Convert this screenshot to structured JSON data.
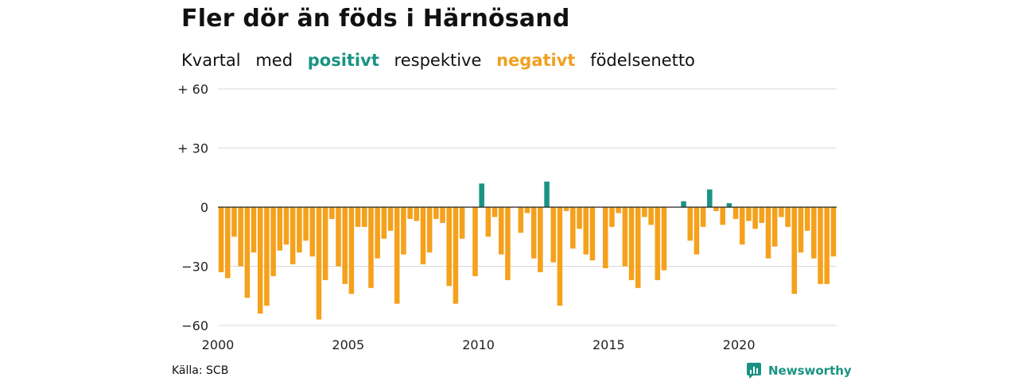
{
  "title": "Fler dör än föds i Härnösand",
  "subtitle": {
    "w1": "Kvartal",
    "w2": "med",
    "positive_word": "positivt",
    "w3": "respektive",
    "negative_word": "negativt",
    "w4": "födelsenetto"
  },
  "source": "Källa: SCB",
  "brand": "Newsworthy",
  "colors": {
    "positive": "#1a9383",
    "negative": "#f5a11c",
    "grid": "#d9d9d9",
    "zero": "#222222"
  },
  "chart_data": {
    "type": "bar",
    "title": "Fler dör än föds i Härnösand",
    "xlabel": "",
    "ylabel": "",
    "ylim": [
      -60,
      60
    ],
    "yticks": [
      60,
      30,
      0,
      -30,
      -60
    ],
    "ytick_labels": [
      "+ 60",
      "+ 30",
      "0",
      "−30",
      "−60"
    ],
    "xticks": [
      "2000",
      "2005",
      "2010",
      "2015",
      "2020"
    ],
    "x_start": "2000 Q1",
    "grid": true,
    "values": [
      -33,
      -36,
      -15,
      -30,
      -46,
      -23,
      -54,
      -50,
      -35,
      -22,
      -19,
      -29,
      -23,
      -17,
      -25,
      -57,
      -37,
      -6,
      -30,
      -39,
      -44,
      -10,
      -10,
      -41,
      -26,
      -16,
      -12,
      -49,
      -24,
      -6,
      -7,
      -29,
      -23,
      -6,
      -8,
      -40,
      -49,
      -16,
      0,
      -35,
      12,
      -15,
      -5,
      -24,
      -37,
      0,
      -13,
      -3,
      -26,
      -33,
      13,
      -28,
      -50,
      -2,
      -21,
      -11,
      -24,
      -27,
      0,
      -31,
      -10,
      -3,
      -30,
      -37,
      -41,
      -5,
      -9,
      -37,
      -32,
      0,
      0,
      3,
      -17,
      -24,
      -10,
      9,
      -2,
      -9,
      2,
      -6,
      -19,
      -7,
      -11,
      -8,
      -26,
      -20,
      -5,
      -10,
      -44,
      -23,
      -12,
      -26,
      -39,
      -39,
      -25
    ]
  }
}
